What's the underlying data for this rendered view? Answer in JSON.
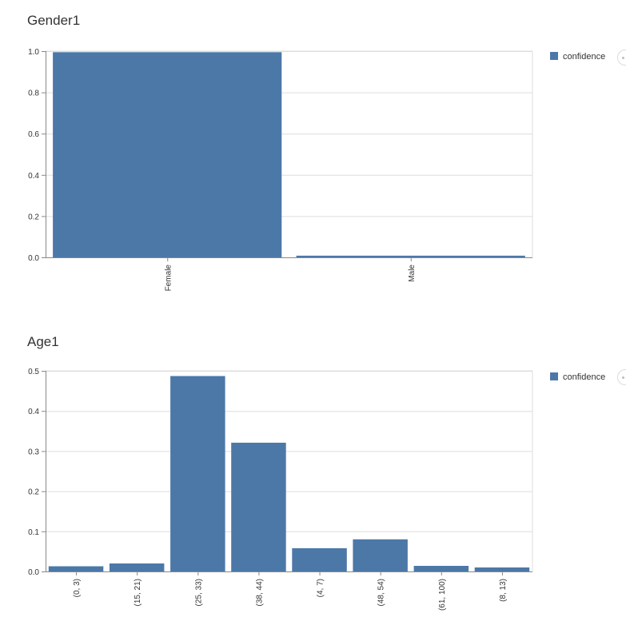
{
  "colors": {
    "bar": "#4c78a8",
    "grid": "#dddddd",
    "axis": "#888888"
  },
  "chart_data": [
    {
      "type": "bar",
      "title": "Gender1",
      "categories": [
        "Female",
        "Male"
      ],
      "series": [
        {
          "name": "confidence",
          "values": [
            0.995,
            0.008
          ]
        }
      ],
      "ylim": [
        0,
        1.0
      ],
      "yticks": [
        0.0,
        0.2,
        0.4,
        0.6,
        0.8,
        1.0
      ],
      "ytick_labels": [
        "0.0",
        "0.2",
        "0.4",
        "0.6",
        "0.8",
        "1.0"
      ],
      "grid": true,
      "legend": "top-right",
      "xlabel": "",
      "ylabel": ""
    },
    {
      "type": "bar",
      "title": "Age1",
      "categories": [
        "(0, 3)",
        "(15, 21)",
        "(25, 33)",
        "(38, 44)",
        "(4, 7)",
        "(48, 54)",
        "(61, 100)",
        "(8, 13)"
      ],
      "series": [
        {
          "name": "confidence",
          "values": [
            0.013,
            0.02,
            0.487,
            0.321,
            0.058,
            0.08,
            0.014,
            0.01
          ]
        }
      ],
      "ylim": [
        0,
        0.5
      ],
      "yticks": [
        0.0,
        0.1,
        0.2,
        0.3,
        0.4,
        0.5
      ],
      "ytick_labels": [
        "0.0",
        "0.1",
        "0.2",
        "0.3",
        "0.4",
        "0.5"
      ],
      "grid": true,
      "legend": "top-right",
      "xlabel": "",
      "ylabel": ""
    }
  ]
}
